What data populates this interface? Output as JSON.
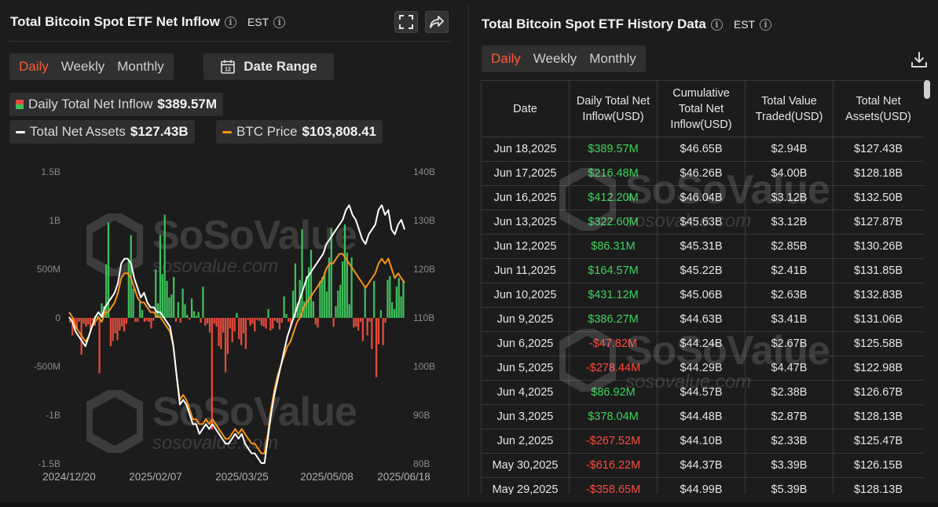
{
  "left": {
    "title": "Total Bitcoin Spot ETF Net Inflow",
    "timezone": "EST",
    "tabs": [
      {
        "label": "Daily"
      },
      {
        "label": "Weekly"
      },
      {
        "label": "Monthly"
      }
    ],
    "date_range_label": "Date Range",
    "legend": {
      "inflow_label": "Daily Total Net Inflow",
      "inflow_value": "$389.57M",
      "assets_label": "Total Net Assets",
      "assets_value": "$127.43B",
      "price_label": "BTC Price",
      "price_value": "$103,808.41"
    },
    "watermark": {
      "brand": "SoSoValue",
      "site": "sosovalue.com"
    }
  },
  "right": {
    "title": "Total Bitcoin Spot ETF History Data",
    "timezone": "EST",
    "tabs": [
      {
        "label": "Daily"
      },
      {
        "label": "Weekly"
      },
      {
        "label": "Monthly"
      }
    ],
    "columns": [
      "Date",
      "Daily Total Net Inflow(USD)",
      "Cumulative Total Net Inflow(USD)",
      "Total Value Traded(USD)",
      "Total Net Assets(USD)"
    ],
    "rows": [
      [
        "Jun 18,2025",
        "$389.57M",
        "$46.65B",
        "$2.94B",
        "$127.43B"
      ],
      [
        "Jun 17,2025",
        "$216.48M",
        "$46.26B",
        "$4.00B",
        "$128.18B"
      ],
      [
        "Jun 16,2025",
        "$412.20M",
        "$46.04B",
        "$3.12B",
        "$132.50B"
      ],
      [
        "Jun 13,2025",
        "$322.60M",
        "$45.63B",
        "$3.12B",
        "$127.87B"
      ],
      [
        "Jun 12,2025",
        "$86.31M",
        "$45.31B",
        "$2.85B",
        "$130.26B"
      ],
      [
        "Jun 11,2025",
        "$164.57M",
        "$45.22B",
        "$2.41B",
        "$131.85B"
      ],
      [
        "Jun 10,2025",
        "$431.12M",
        "$45.06B",
        "$2.63B",
        "$132.83B"
      ],
      [
        "Jun 9,2025",
        "$386.27M",
        "$44.63B",
        "$3.41B",
        "$131.06B"
      ],
      [
        "Jun 6,2025",
        "-$47.82M",
        "$44.24B",
        "$2.67B",
        "$125.58B"
      ],
      [
        "Jun 5,2025",
        "-$278.44M",
        "$44.29B",
        "$4.47B",
        "$122.98B"
      ],
      [
        "Jun 4,2025",
        "$86.92M",
        "$44.57B",
        "$2.38B",
        "$126.67B"
      ],
      [
        "Jun 3,2025",
        "$378.04M",
        "$44.48B",
        "$2.87B",
        "$128.13B"
      ],
      [
        "Jun 2,2025",
        "-$267.52M",
        "$44.10B",
        "$2.33B",
        "$125.47B"
      ],
      [
        "May 30,2025",
        "-$616.22M",
        "$44.37B",
        "$3.39B",
        "$126.15B"
      ],
      [
        "May 29,2025",
        "-$358.65M",
        "$44.99B",
        "$5.39B",
        "$128.13B"
      ]
    ],
    "watermark": {
      "brand": "SoSoValue",
      "site": "sosovalue.com"
    }
  },
  "icons": {
    "info": "info-icon",
    "fullscreen": "fullscreen-icon",
    "share": "share-icon",
    "calendar": "calendar-icon",
    "download": "download-icon"
  },
  "colors": {
    "accent": "#ff5a36",
    "positive": "#3fbf5a",
    "negative": "#e54b3c",
    "assets_line": "#ffffff",
    "price_line": "#f7931a"
  },
  "chart_data": {
    "type": "bar",
    "x_ticks": [
      "2024/12/20",
      "2025/02/07",
      "2025/03/25",
      "2025/05/08",
      "2025/06/18"
    ],
    "left_axis": {
      "ticks": [
        "1.5B",
        "1B",
        "500M",
        "0",
        "-500M",
        "-1B",
        "-1.5B"
      ],
      "range": [
        -1500,
        1500
      ],
      "unit": "M"
    },
    "right_axis": {
      "ticks": [
        "140B",
        "130B",
        "120B",
        "110B",
        "100B",
        "90B",
        "80B"
      ],
      "range": [
        80,
        140
      ],
      "unit": "B"
    },
    "series": [
      {
        "name": "Daily Total Net Inflow",
        "kind": "bar",
        "axis": "left",
        "values": [
          -50,
          -180,
          -120,
          -120,
          -40,
          -380,
          -60,
          -90,
          -70,
          -150,
          -30,
          -80,
          20,
          -570,
          150,
          120,
          550,
          980,
          -290,
          -240,
          -160,
          -230,
          -130,
          -90,
          -140,
          -60,
          600,
          850,
          300,
          -40,
          -40,
          180,
          80,
          -40,
          -30,
          -40,
          -110,
          -30,
          500,
          150,
          850,
          450,
          1060,
          380,
          210,
          240,
          420,
          -40,
          160,
          -50,
          300,
          140,
          30,
          -20,
          200,
          70,
          20,
          60,
          -50,
          320,
          -80,
          -60,
          -150,
          -1150,
          -60,
          -90,
          -290,
          -320,
          -150,
          -560,
          -370,
          -110,
          -250,
          -140,
          50,
          -220,
          -280,
          -160,
          -320,
          -20,
          -80,
          -60,
          -140,
          -20,
          -30,
          -80,
          -90,
          -110,
          90,
          -130,
          -110,
          -30,
          -50,
          -120,
          -50,
          220,
          40,
          -40,
          -80,
          280,
          560,
          150,
          390,
          910,
          170,
          430,
          520,
          700,
          170,
          -70,
          -100,
          380,
          420,
          470,
          270,
          620,
          920,
          -90,
          120,
          280,
          340,
          580,
          960,
          670,
          140,
          620,
          -100,
          -90,
          -130,
          -40,
          -240,
          330,
          -180,
          -40,
          -320,
          380,
          -610,
          -270,
          80,
          -280,
          -50,
          390,
          430,
          160,
          90,
          320,
          410,
          220,
          390
        ]
      },
      {
        "name": "Total Net Assets",
        "kind": "line",
        "axis": "right",
        "values": [
          110,
          109,
          107,
          106,
          105,
          104,
          106,
          108,
          110,
          111,
          110,
          112,
          113,
          114,
          115,
          117,
          121,
          122,
          122,
          121,
          118,
          116,
          114,
          115,
          113,
          112,
          112,
          111,
          111,
          110,
          109,
          108,
          104,
          98,
          92,
          93,
          92,
          90,
          88,
          88,
          86,
          87,
          88,
          87,
          88,
          87,
          86,
          85,
          84,
          84,
          85,
          86,
          85,
          86,
          84,
          83,
          82,
          82,
          81,
          80,
          80,
          85,
          90,
          94,
          97,
          100,
          103,
          106,
          108,
          110,
          112,
          114,
          116,
          118,
          119,
          120,
          121,
          122,
          123,
          125,
          126,
          127,
          128,
          129,
          130,
          132,
          133,
          131,
          130,
          128,
          126,
          125,
          127,
          128,
          129,
          132,
          133,
          131,
          132,
          128,
          127,
          129,
          130,
          128
        ]
      },
      {
        "name": "BTC Price",
        "kind": "line",
        "axis": "right",
        "values": [
          111,
          110,
          108,
          107,
          106,
          105,
          106,
          108,
          109,
          110,
          109,
          111,
          111,
          112,
          113,
          115,
          118,
          119,
          119,
          118,
          116,
          114,
          113,
          113,
          112,
          111,
          111,
          110,
          110,
          109,
          108,
          107,
          104,
          98,
          93,
          94,
          93,
          91,
          89,
          89,
          88,
          88,
          89,
          88,
          89,
          88,
          87,
          86,
          85,
          85,
          86,
          87,
          86,
          87,
          86,
          85,
          84,
          84,
          83,
          82,
          82,
          86,
          91,
          95,
          98,
          100,
          102,
          104,
          105,
          107,
          109,
          110,
          112,
          113,
          114,
          115,
          116,
          117,
          118,
          120,
          121,
          121,
          122,
          123,
          123,
          122,
          121,
          120,
          119,
          118,
          117,
          116,
          117,
          118,
          119,
          121,
          122,
          121,
          122,
          120,
          118,
          119,
          118,
          117
        ]
      }
    ]
  }
}
